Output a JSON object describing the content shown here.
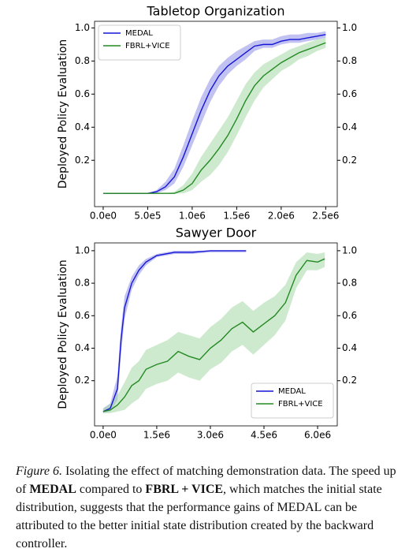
{
  "chart_data": [
    {
      "type": "line",
      "title": "Tabletop Organization",
      "ylabel": "Deployed Policy Evaluation",
      "xlim": [
        -97000,
        2630000
      ],
      "ylim": [
        -0.08,
        1.04
      ],
      "y2lim": [
        -0.08,
        1.04
      ],
      "xticks": [
        {
          "value": 0,
          "label": "0.0e0"
        },
        {
          "value": 500000,
          "label": "5.0e5"
        },
        {
          "value": 1000000,
          "label": "1.0e6"
        },
        {
          "value": 1500000,
          "label": "1.5e6"
        },
        {
          "value": 2000000,
          "label": "2.0e6"
        },
        {
          "value": 2500000,
          "label": "2.5e6"
        }
      ],
      "yticks": [
        {
          "value": 1,
          "label": "1.0"
        },
        0.8,
        0.6,
        0.4,
        0.2
      ],
      "y2ticks": [
        {
          "value": 1,
          "label": "1.0"
        },
        0.8,
        0.6,
        0.4,
        0.2
      ],
      "legend": "upper left",
      "series": [
        {
          "name": "MEDAL",
          "color": "#1515d6",
          "band_color": "#8f8fe8",
          "x": [
            0,
            100000,
            200000,
            300000,
            400000,
            500000,
            600000,
            700000,
            800000,
            900000,
            1000000,
            1100000,
            1200000,
            1300000,
            1400000,
            1500000,
            1600000,
            1700000,
            1800000,
            1900000,
            2000000,
            2100000,
            2200000,
            2300000,
            2400000,
            2500000
          ],
          "values": [
            0,
            0,
            0,
            0,
            0,
            0,
            0.01,
            0.04,
            0.1,
            0.22,
            0.36,
            0.5,
            0.62,
            0.71,
            0.77,
            0.81,
            0.85,
            0.89,
            0.9,
            0.9,
            0.92,
            0.93,
            0.93,
            0.94,
            0.95,
            0.96
          ],
          "lower": [
            0,
            0,
            0,
            0,
            0,
            0,
            0,
            0.02,
            0.06,
            0.16,
            0.29,
            0.42,
            0.55,
            0.65,
            0.72,
            0.77,
            0.81,
            0.86,
            0.88,
            0.88,
            0.9,
            0.91,
            0.91,
            0.92,
            0.93,
            0.94
          ],
          "upper": [
            0,
            0,
            0,
            0,
            0,
            0,
            0.02,
            0.07,
            0.15,
            0.29,
            0.44,
            0.58,
            0.69,
            0.77,
            0.82,
            0.86,
            0.89,
            0.92,
            0.93,
            0.93,
            0.95,
            0.96,
            0.96,
            0.97,
            0.97,
            0.98
          ]
        },
        {
          "name": "FBRL+VICE",
          "color": "#238a23",
          "band_color": "#a6d8a6",
          "x": [
            0,
            100000,
            200000,
            300000,
            400000,
            500000,
            600000,
            700000,
            800000,
            900000,
            1000000,
            1100000,
            1200000,
            1300000,
            1400000,
            1500000,
            1600000,
            1700000,
            1800000,
            1900000,
            2000000,
            2100000,
            2200000,
            2300000,
            2400000,
            2500000
          ],
          "values": [
            0,
            0,
            0,
            0,
            0,
            0,
            0,
            0,
            0,
            0.02,
            0.06,
            0.14,
            0.2,
            0.27,
            0.35,
            0.45,
            0.56,
            0.65,
            0.71,
            0.75,
            0.79,
            0.82,
            0.85,
            0.87,
            0.89,
            0.91
          ],
          "lower": [
            0,
            0,
            0,
            0,
            0,
            0,
            0,
            0,
            0,
            0,
            0.02,
            0.07,
            0.11,
            0.17,
            0.25,
            0.35,
            0.46,
            0.56,
            0.64,
            0.69,
            0.74,
            0.77,
            0.81,
            0.83,
            0.86,
            0.88
          ],
          "upper": [
            0,
            0,
            0,
            0,
            0,
            0,
            0,
            0,
            0.01,
            0.05,
            0.12,
            0.22,
            0.3,
            0.38,
            0.46,
            0.56,
            0.66,
            0.73,
            0.78,
            0.81,
            0.84,
            0.87,
            0.89,
            0.91,
            0.93,
            0.94
          ]
        }
      ]
    },
    {
      "type": "line",
      "title": "Sawyer Door",
      "ylabel": "Deployed Policy Evaluation",
      "xlim": [
        -240000,
        6550000
      ],
      "ylim": [
        -0.078,
        1.048
      ],
      "y2lim": [
        -0.078,
        1.048
      ],
      "xticks": [
        {
          "value": 0,
          "label": "0.0e0"
        },
        {
          "value": 1500000,
          "label": "1.5e6"
        },
        {
          "value": 3000000,
          "label": "3.0e6"
        },
        {
          "value": 4500000,
          "label": "4.5e6"
        },
        {
          "value": 6000000,
          "label": "6.0e6"
        }
      ],
      "yticks": [
        {
          "value": 1,
          "label": "1.0"
        },
        0.8,
        0.6,
        0.4,
        0.2
      ],
      "y2ticks": [
        {
          "value": 1,
          "label": "1.0"
        },
        0.8,
        0.6,
        0.4,
        0.2
      ],
      "legend": "lower right",
      "series": [
        {
          "name": "MEDAL",
          "color": "#1515d6",
          "band_color": "#8f8fe8",
          "x": [
            0,
            200000,
            400000,
            500000,
            600000,
            800000,
            1000000,
            1200000,
            1500000,
            2000000,
            2500000,
            3000000,
            3500000,
            4000000
          ],
          "values": [
            0.01,
            0.03,
            0.15,
            0.45,
            0.65,
            0.8,
            0.88,
            0.93,
            0.97,
            0.99,
            0.99,
            1.0,
            1.0,
            1.0
          ],
          "lower": [
            0,
            0.01,
            0.08,
            0.36,
            0.58,
            0.76,
            0.85,
            0.91,
            0.96,
            0.98,
            0.98,
            0.99,
            0.99,
            0.99
          ],
          "upper": [
            0.03,
            0.06,
            0.23,
            0.53,
            0.72,
            0.84,
            0.91,
            0.95,
            0.98,
            1.0,
            1.0,
            1.0,
            1.0,
            1.0
          ]
        },
        {
          "name": "FBRL+VICE",
          "color": "#238a23",
          "band_color": "#a6d8a6",
          "x": [
            0,
            200000,
            400000,
            600000,
            800000,
            1000000,
            1200000,
            1500000,
            1800000,
            2100000,
            2400000,
            2700000,
            3000000,
            3300000,
            3600000,
            3900000,
            4200000,
            4500000,
            4800000,
            5100000,
            5400000,
            5700000,
            6000000,
            6200000
          ],
          "values": [
            0.01,
            0.02,
            0.05,
            0.1,
            0.17,
            0.2,
            0.27,
            0.3,
            0.32,
            0.38,
            0.35,
            0.33,
            0.4,
            0.45,
            0.52,
            0.56,
            0.5,
            0.55,
            0.6,
            0.68,
            0.85,
            0.94,
            0.93,
            0.95
          ],
          "lower": [
            0,
            0,
            0.01,
            0.02,
            0.06,
            0.09,
            0.15,
            0.18,
            0.2,
            0.25,
            0.22,
            0.2,
            0.27,
            0.31,
            0.38,
            0.42,
            0.36,
            0.42,
            0.48,
            0.57,
            0.77,
            0.88,
            0.88,
            0.9
          ],
          "upper": [
            0.03,
            0.06,
            0.11,
            0.19,
            0.28,
            0.32,
            0.39,
            0.42,
            0.45,
            0.5,
            0.48,
            0.46,
            0.53,
            0.58,
            0.65,
            0.69,
            0.63,
            0.68,
            0.72,
            0.79,
            0.93,
            0.99,
            0.98,
            0.99
          ]
        }
      ]
    }
  ],
  "caption": [
    {
      "text": "Figure 6.",
      "style": "italic"
    },
    {
      "text": " Isolating the effect of matching demonstration data. The speed up of ",
      "style": "normal"
    },
    {
      "text": "MEDAL",
      "style": "bold"
    },
    {
      "text": " compared to ",
      "style": "normal"
    },
    {
      "text": "FBRL + VICE",
      "style": "bold"
    },
    {
      "text": ", which matches the initial state distribution, suggests that the performance gains of MEDAL can be attributed to the better initial state distribution created by the backward controller.",
      "style": "normal"
    }
  ]
}
